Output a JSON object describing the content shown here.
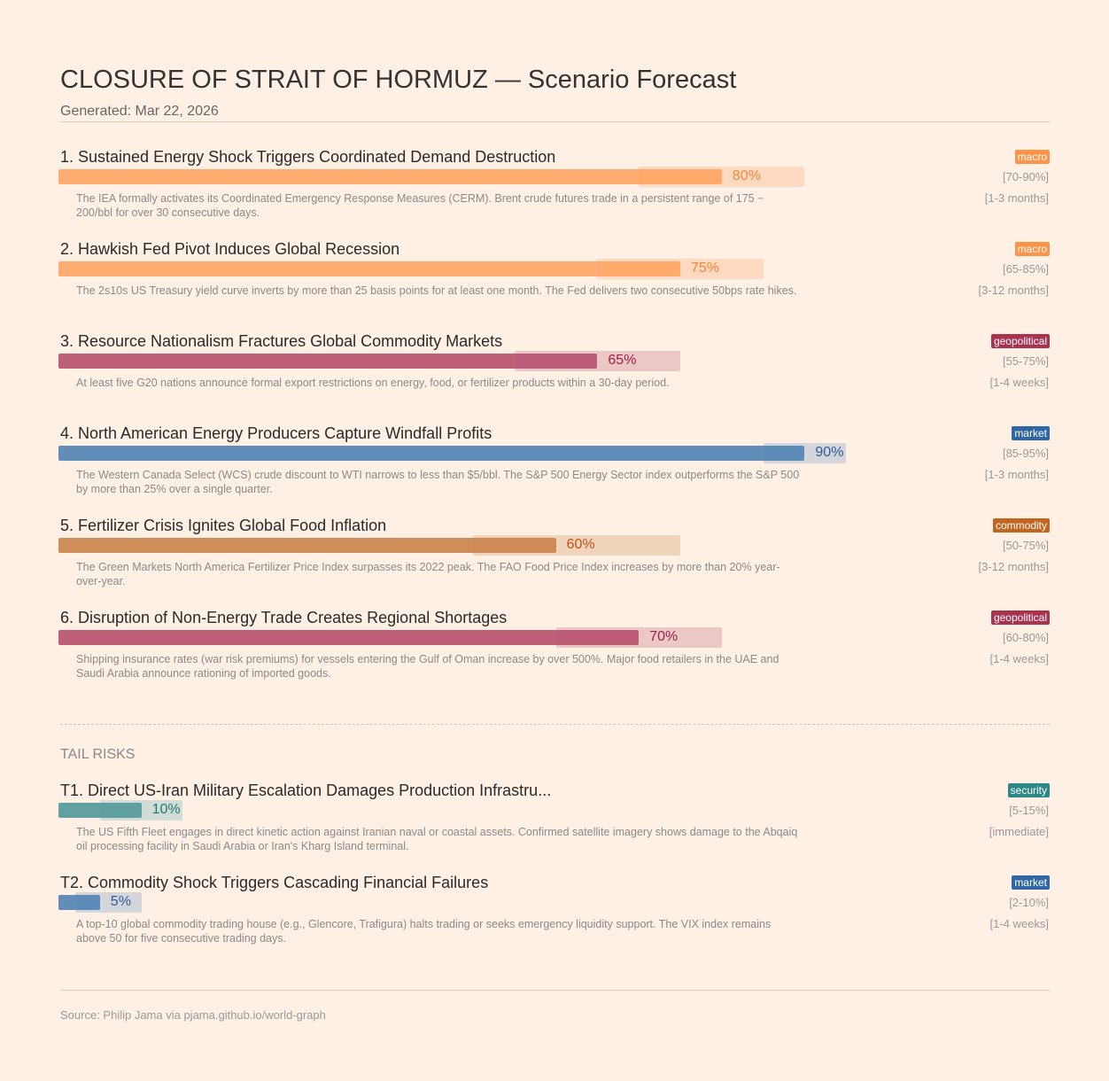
{
  "header": {
    "title": "CLOSURE OF STRAIT OF HORMUZ — Scenario Forecast",
    "generated": "Generated: Mar 22, 2026"
  },
  "category_colors": {
    "macro": {
      "bar": "#ffa666",
      "band": "#ffd6b8",
      "badge": "#ff9347",
      "text": "#f5873a"
    },
    "geopolitical": {
      "bar": "#b8526f",
      "band": "#e8c0c0",
      "badge": "#a8324f",
      "text": "#9a2348"
    },
    "market": {
      "bar": "#5584b5",
      "band": "#cdd1d8",
      "badge": "#2f67a5",
      "text": "#2a5c96"
    },
    "commodity": {
      "bar": "#cb844e",
      "band": "#efcfb4",
      "badge": "#c2651f",
      "text": "#b8561a"
    },
    "security": {
      "bar": "#55999b",
      "band": "#c9d8d2",
      "badge": "#2c8787",
      "text": "#217878"
    }
  },
  "chart_data": {
    "type": "bar",
    "orientation": "horizontal",
    "xlim": [
      0,
      100
    ],
    "scenarios": [
      {
        "label": "1. Sustained Energy Shock Triggers Coordinated Demand Destruction",
        "value": 80,
        "value_label": "80%",
        "range": [
          70,
          90
        ],
        "range_label": "[70-90%]",
        "category": "macro",
        "timeframe": "[1-3 months]",
        "description": "The IEA formally activates its Coordinated Emergency Response Measures (CERM). Brent crude futures trade in a persistent range of 175 − 200/bbl for over 30 consecutive days."
      },
      {
        "label": "2. Hawkish Fed Pivot Induces Global Recession",
        "value": 75,
        "value_label": "75%",
        "range": [
          65,
          85
        ],
        "range_label": "[65-85%]",
        "category": "macro",
        "timeframe": "[3-12 months]",
        "description": "The 2s10s US Treasury yield curve inverts by more than 25 basis points for at least one month. The Fed delivers two consecutive 50bps rate hikes."
      },
      {
        "label": "3. Resource Nationalism Fractures Global Commodity Markets",
        "value": 65,
        "value_label": "65%",
        "range": [
          55,
          75
        ],
        "range_label": "[55-75%]",
        "category": "geopolitical",
        "timeframe": "[1-4 weeks]",
        "description": "At least five G20 nations announce formal export restrictions on energy, food, or fertilizer products within a 30-day period."
      },
      {
        "label": "4. North American Energy Producers Capture Windfall Profits",
        "value": 90,
        "value_label": "90%",
        "range": [
          85,
          95
        ],
        "range_label": "[85-95%]",
        "category": "market",
        "timeframe": "[1-3 months]",
        "description": "The Western Canada Select (WCS) crude discount to WTI narrows to less than $5/bbl. The S&P 500 Energy Sector index outperforms the S&P 500 by more than 25% over a single quarter."
      },
      {
        "label": "5. Fertilizer Crisis Ignites Global Food Inflation",
        "value": 60,
        "value_label": "60%",
        "range": [
          50,
          75
        ],
        "range_label": "[50-75%]",
        "category": "commodity",
        "timeframe": "[3-12 months]",
        "description": "The Green Markets North America Fertilizer Price Index surpasses its 2022 peak. The FAO Food Price Index increases by more than 20% year-over-year."
      },
      {
        "label": "6. Disruption of Non-Energy Trade Creates Regional Shortages",
        "value": 70,
        "value_label": "70%",
        "range": [
          60,
          80
        ],
        "range_label": "[60-80%]",
        "category": "geopolitical",
        "timeframe": "[1-4 weeks]",
        "description": "Shipping insurance rates (war risk premiums) for vessels entering the Gulf of Oman increase by over 500%. Major food retailers in the UAE and Saudi Arabia announce rationing of imported goods."
      }
    ],
    "tail_title": "TAIL RISKS",
    "tail_risks": [
      {
        "label": "T1. Direct US-Iran Military Escalation Damages Production Infrastru...",
        "value": 10,
        "value_label": "10%",
        "range": [
          5,
          15
        ],
        "range_label": "[5-15%]",
        "category": "security",
        "timeframe": "[immediate]",
        "description": "The US Fifth Fleet engages in direct kinetic action against Iranian naval or coastal assets. Confirmed satellite imagery shows damage to the Abqaiq oil processing facility in Saudi Arabia or Iran's Kharg Island terminal."
      },
      {
        "label": "T2. Commodity Shock Triggers Cascading Financial Failures",
        "value": 5,
        "value_label": "5%",
        "range": [
          2,
          10
        ],
        "range_label": "[2-10%]",
        "category": "market",
        "timeframe": "[1-4 weeks]",
        "description": "A top-10 global commodity trading house (e.g., Glencore, Trafigura) halts trading or seeks emergency liquidity support. The VIX index remains above 50 for five consecutive trading days."
      }
    ]
  },
  "footer": {
    "source": "Source: Philip Jama via pjama.github.io/world-graph"
  }
}
